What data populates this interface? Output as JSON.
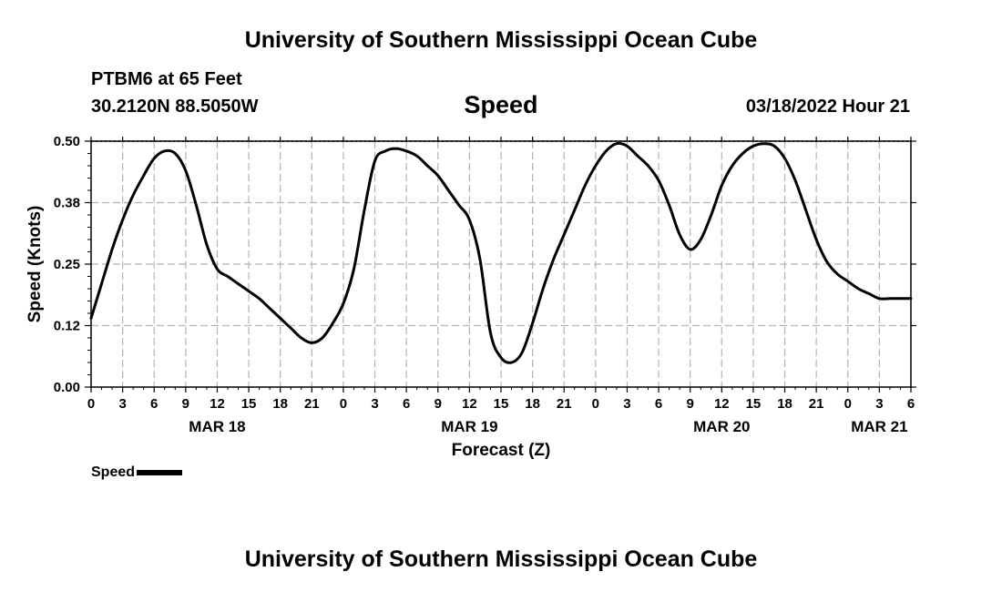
{
  "header": {
    "title": "University of Southern Mississippi Ocean Cube",
    "station": "PTBM6 at 65 Feet",
    "location": "30.2120N  88.5050W",
    "variable": "Speed",
    "datetime": "03/18/2022 Hour 21"
  },
  "footer": {
    "title": "University of Southern Mississippi Ocean Cube"
  },
  "legend": {
    "label": "Speed"
  },
  "chart_data": {
    "type": "line",
    "title": "Speed",
    "xlabel": "Forecast (Z)",
    "ylabel": "Speed (Knots)",
    "xlim": [
      0,
      78
    ],
    "ylim": [
      0,
      0.5
    ],
    "yticks": [
      "0.00",
      "0.12",
      "0.25",
      "0.38",
      "0.50"
    ],
    "ytick_values": [
      0,
      0.125,
      0.25,
      0.375,
      0.5
    ],
    "xtick_labels": [
      "0",
      "3",
      "6",
      "9",
      "12",
      "15",
      "18",
      "21",
      "0",
      "3",
      "6",
      "9",
      "12",
      "15",
      "18",
      "21",
      "0",
      "3",
      "6",
      "9",
      "12",
      "15",
      "18",
      "21",
      "0",
      "3",
      "6"
    ],
    "date_labels": [
      {
        "label": "MAR 18",
        "hour": 12
      },
      {
        "label": "MAR 19",
        "hour": 36
      },
      {
        "label": "MAR 20",
        "hour": 60
      },
      {
        "label": "MAR 21",
        "hour": 75
      }
    ],
    "grid": true,
    "series": [
      {
        "name": "Speed",
        "color": "#000000",
        "x": [
          0,
          1,
          2,
          3,
          4,
          5,
          6,
          7,
          8,
          9,
          10,
          11,
          12,
          13,
          14,
          15,
          16,
          17,
          18,
          19,
          20,
          21,
          22,
          23,
          24,
          25,
          26,
          27,
          28,
          29,
          30,
          31,
          32,
          33,
          34,
          35,
          36,
          37,
          38,
          39,
          40,
          41,
          42,
          43,
          44,
          45,
          46,
          47,
          48,
          49,
          50,
          51,
          52,
          53,
          54,
          55,
          56,
          57,
          58,
          59,
          60,
          61,
          62,
          63,
          64,
          65,
          66,
          67,
          68,
          69,
          70,
          71,
          72,
          73,
          74,
          75,
          76,
          77,
          78
        ],
        "values": [
          0.14,
          0.21,
          0.28,
          0.34,
          0.39,
          0.43,
          0.465,
          0.48,
          0.475,
          0.44,
          0.37,
          0.29,
          0.24,
          0.225,
          0.21,
          0.195,
          0.18,
          0.16,
          0.14,
          0.12,
          0.1,
          0.09,
          0.1,
          0.13,
          0.17,
          0.24,
          0.36,
          0.46,
          0.48,
          0.485,
          0.48,
          0.47,
          0.45,
          0.43,
          0.4,
          0.37,
          0.34,
          0.26,
          0.11,
          0.06,
          0.05,
          0.07,
          0.13,
          0.2,
          0.26,
          0.31,
          0.36,
          0.41,
          0.45,
          0.48,
          0.495,
          0.49,
          0.47,
          0.45,
          0.42,
          0.37,
          0.31,
          0.28,
          0.3,
          0.35,
          0.41,
          0.45,
          0.475,
          0.49,
          0.495,
          0.49,
          0.465,
          0.42,
          0.36,
          0.3,
          0.255,
          0.23,
          0.215,
          0.2,
          0.19,
          0.18,
          0.18,
          0.18,
          0.18
        ]
      }
    ]
  }
}
